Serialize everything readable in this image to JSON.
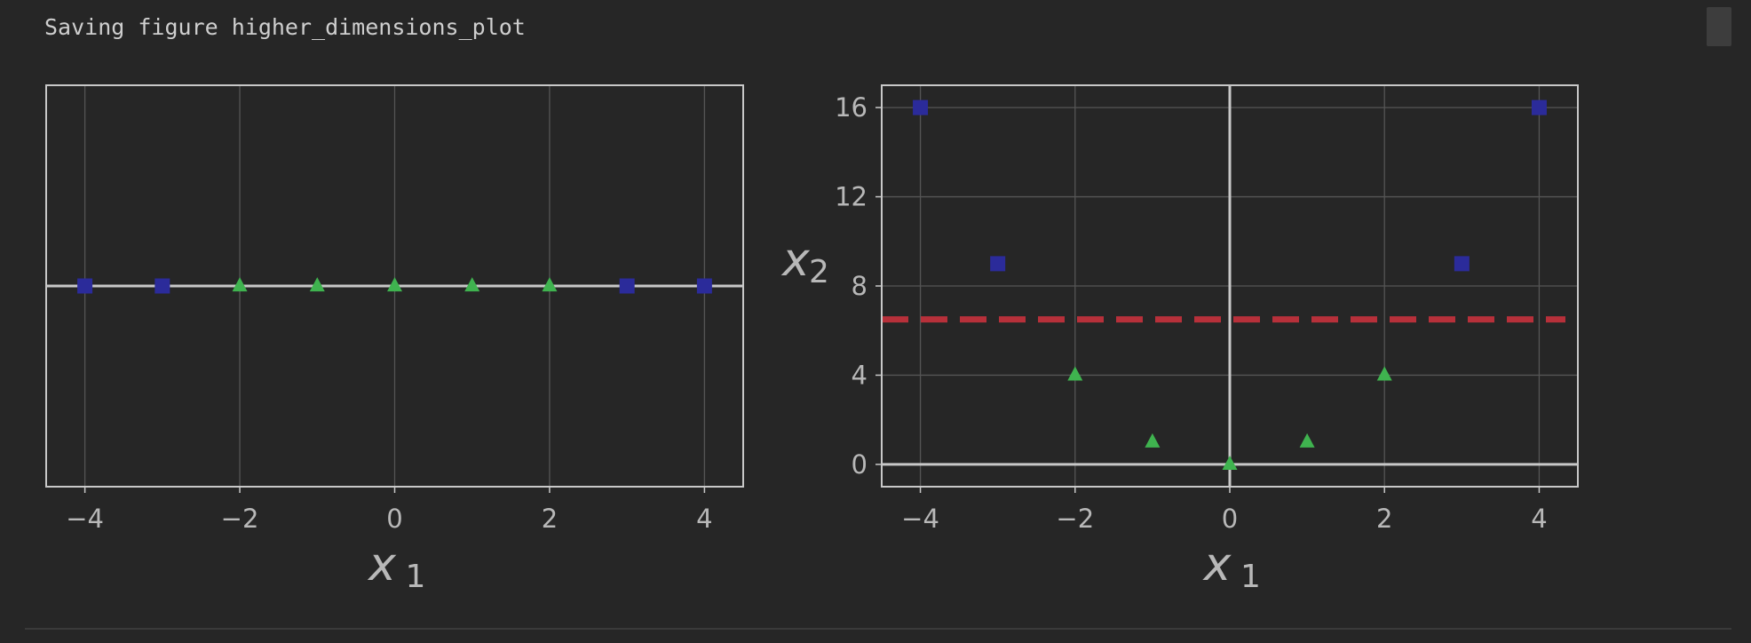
{
  "output": {
    "text": "Saving figure higher_dimensions_plot"
  },
  "colors": {
    "background": "#262626",
    "square_marker": "#2b2b9a",
    "triangle_marker": "#3fb34f",
    "threshold_line": "#b7303a",
    "axes_frame": "#c8c8c8",
    "grid": "#555555",
    "text": "#b8b8b8"
  },
  "chart_data": [
    {
      "type": "scatter",
      "title": "",
      "xlabel": "x",
      "xlabel_sub": "1",
      "ylabel": "",
      "xlim": [
        -4.5,
        4.5
      ],
      "ylim": [
        -0.2,
        0.2
      ],
      "xticks": [
        -4,
        -2,
        0,
        2,
        4
      ],
      "xtick_labels": [
        "−4",
        "−2",
        "0",
        "2",
        "4"
      ],
      "yticks": [],
      "grid": true,
      "axis_lines": [
        "y=0"
      ],
      "series": [
        {
          "marker": "square",
          "color": "#2b2b9a",
          "x": [
            -4,
            -3,
            3,
            4
          ],
          "y": [
            0,
            0,
            0,
            0
          ]
        },
        {
          "marker": "triangle",
          "color": "#3fb34f",
          "x": [
            -2,
            -1,
            0,
            1,
            2
          ],
          "y": [
            0,
            0,
            0,
            0,
            0
          ]
        }
      ]
    },
    {
      "type": "scatter",
      "title": "",
      "xlabel": "x",
      "xlabel_sub": "1",
      "ylabel": "x",
      "ylabel_sub": "2",
      "xlim": [
        -4.5,
        4.5
      ],
      "ylim": [
        -1,
        17
      ],
      "xticks": [
        -4,
        -2,
        0,
        2,
        4
      ],
      "xtick_labels": [
        "−4",
        "−2",
        "0",
        "2",
        "4"
      ],
      "yticks": [
        0,
        4,
        8,
        12,
        16
      ],
      "ytick_labels": [
        "0",
        "4",
        "8",
        "12",
        "16"
      ],
      "grid": true,
      "axis_lines": [
        "y=0",
        "x=0"
      ],
      "threshold": {
        "y": 6.5,
        "style": "dashed",
        "color": "#b7303a"
      },
      "series": [
        {
          "marker": "square",
          "color": "#2b2b9a",
          "x": [
            -4,
            -3,
            3,
            4
          ],
          "y": [
            16,
            9,
            9,
            16
          ]
        },
        {
          "marker": "triangle",
          "color": "#3fb34f",
          "x": [
            -2,
            -1,
            0,
            1,
            2
          ],
          "y": [
            4,
            1,
            0,
            1,
            4
          ]
        }
      ]
    }
  ]
}
